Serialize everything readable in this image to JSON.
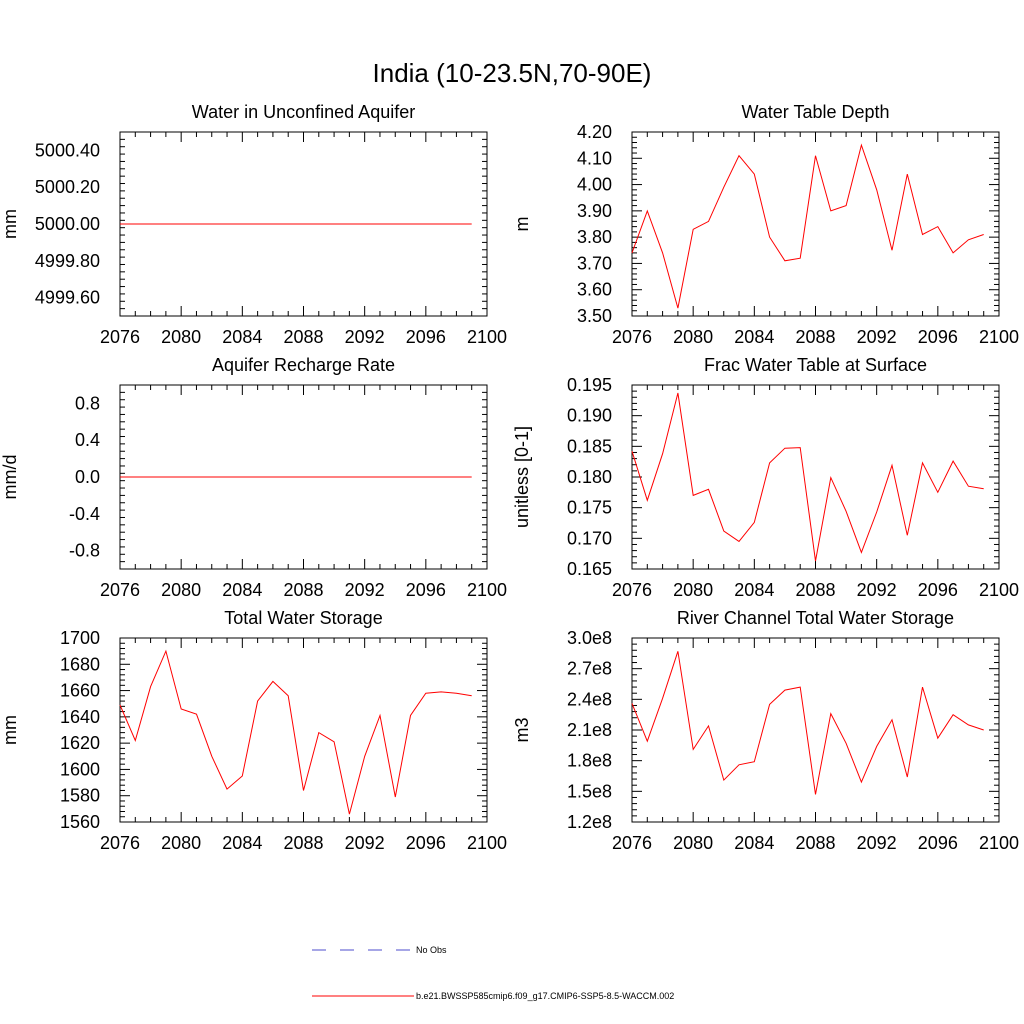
{
  "figure_title": "India (10-23.5N,70-90E)",
  "line_color": "#ff0000",
  "obs_color": "#4d4dcc",
  "legend": {
    "obs_label": "No Obs",
    "model_label": "b.e21.BWSSP585cmip6.f09_g17.CMIP6-SSP5-8.5-WACCM.002"
  },
  "chart_data": [
    {
      "type": "line",
      "title": "Water in Unconfined Aquifer",
      "ylabel": "mm",
      "xlim": [
        2076,
        2100
      ],
      "xticks": [
        2076,
        2080,
        2084,
        2088,
        2092,
        2096,
        2100
      ],
      "ylim": [
        4999.5,
        5000.5
      ],
      "yticks": [
        4999.6,
        4999.8,
        5000.0,
        5000.2,
        5000.4
      ],
      "ytick_labels": [
        "4999.60",
        "4999.80",
        "5000.00",
        "5000.20",
        "5000.40"
      ],
      "x": [
        2076,
        2077,
        2078,
        2079,
        2080,
        2081,
        2082,
        2083,
        2084,
        2085,
        2086,
        2087,
        2088,
        2089,
        2090,
        2091,
        2092,
        2093,
        2094,
        2095,
        2096,
        2097,
        2098,
        2099
      ],
      "y": [
        5000,
        5000,
        5000,
        5000,
        5000,
        5000,
        5000,
        5000,
        5000,
        5000,
        5000,
        5000,
        5000,
        5000,
        5000,
        5000,
        5000,
        5000,
        5000,
        5000,
        5000,
        5000,
        5000,
        5000
      ]
    },
    {
      "type": "line",
      "title": "Water Table Depth",
      "ylabel": "m",
      "xlim": [
        2076,
        2100
      ],
      "xticks": [
        2076,
        2080,
        2084,
        2088,
        2092,
        2096,
        2100
      ],
      "ylim": [
        3.5,
        4.2
      ],
      "yticks": [
        3.5,
        3.6,
        3.7,
        3.8,
        3.9,
        4.0,
        4.1,
        4.2
      ],
      "ytick_labels": [
        "3.50",
        "3.60",
        "3.70",
        "3.80",
        "3.90",
        "4.00",
        "4.10",
        "4.20"
      ],
      "x": [
        2076,
        2077,
        2078,
        2079,
        2080,
        2081,
        2082,
        2083,
        2084,
        2085,
        2086,
        2087,
        2088,
        2089,
        2090,
        2091,
        2092,
        2093,
        2094,
        2095,
        2096,
        2097,
        2098,
        2099
      ],
      "y": [
        3.74,
        3.9,
        3.74,
        3.53,
        3.83,
        3.86,
        3.99,
        4.11,
        4.04,
        3.8,
        3.71,
        3.72,
        4.11,
        3.9,
        3.92,
        4.15,
        3.98,
        3.75,
        4.04,
        3.81,
        3.84,
        3.74,
        3.79,
        3.81
      ]
    },
    {
      "type": "line",
      "title": "Aquifer Recharge Rate",
      "ylabel": "mm/d",
      "xlim": [
        2076,
        2100
      ],
      "xticks": [
        2076,
        2080,
        2084,
        2088,
        2092,
        2096,
        2100
      ],
      "ylim": [
        -1.0,
        1.0
      ],
      "yticks": [
        -0.8,
        -0.4,
        0.0,
        0.4,
        0.8
      ],
      "ytick_labels": [
        "-0.8",
        "-0.4",
        "0.0",
        "0.4",
        "0.8"
      ],
      "x": [
        2076,
        2077,
        2078,
        2079,
        2080,
        2081,
        2082,
        2083,
        2084,
        2085,
        2086,
        2087,
        2088,
        2089,
        2090,
        2091,
        2092,
        2093,
        2094,
        2095,
        2096,
        2097,
        2098,
        2099
      ],
      "y": [
        0,
        0,
        0,
        0,
        0,
        0,
        0,
        0,
        0,
        0,
        0,
        0,
        0,
        0,
        0,
        0,
        0,
        0,
        0,
        0,
        0,
        0,
        0,
        0
      ]
    },
    {
      "type": "line",
      "title": "Frac Water Table at Surface",
      "ylabel": "unitless [0-1]",
      "xlim": [
        2076,
        2100
      ],
      "xticks": [
        2076,
        2080,
        2084,
        2088,
        2092,
        2096,
        2100
      ],
      "ylim": [
        0.165,
        0.195
      ],
      "yticks": [
        0.165,
        0.17,
        0.175,
        0.18,
        0.185,
        0.19,
        0.195
      ],
      "ytick_labels": [
        "0.165",
        "0.170",
        "0.175",
        "0.180",
        "0.185",
        "0.190",
        "0.195"
      ],
      "x": [
        2076,
        2077,
        2078,
        2079,
        2080,
        2081,
        2082,
        2083,
        2084,
        2085,
        2086,
        2087,
        2088,
        2089,
        2090,
        2091,
        2092,
        2093,
        2094,
        2095,
        2096,
        2097,
        2098,
        2099
      ],
      "y": [
        0.1842,
        0.1762,
        0.1838,
        0.1937,
        0.177,
        0.178,
        0.1712,
        0.1695,
        0.1726,
        0.1823,
        0.1847,
        0.1848,
        0.1663,
        0.1799,
        0.1744,
        0.1677,
        0.1743,
        0.1819,
        0.1705,
        0.1823,
        0.1775,
        0.1826,
        0.1785,
        0.1781
      ]
    },
    {
      "type": "line",
      "title": "Total Water Storage",
      "ylabel": "mm",
      "xlim": [
        2076,
        2100
      ],
      "xticks": [
        2076,
        2080,
        2084,
        2088,
        2092,
        2096,
        2100
      ],
      "ylim": [
        1560,
        1700
      ],
      "yticks": [
        1560,
        1580,
        1600,
        1620,
        1640,
        1660,
        1680,
        1700
      ],
      "ytick_labels": [
        "1560",
        "1580",
        "1600",
        "1620",
        "1640",
        "1660",
        "1680",
        "1700"
      ],
      "x": [
        2076,
        2077,
        2078,
        2079,
        2080,
        2081,
        2082,
        2083,
        2084,
        2085,
        2086,
        2087,
        2088,
        2089,
        2090,
        2091,
        2092,
        2093,
        2094,
        2095,
        2096,
        2097,
        2098,
        2099
      ],
      "y": [
        1649,
        1622,
        1663,
        1690,
        1646,
        1642,
        1610,
        1585,
        1595,
        1652,
        1667,
        1656,
        1584,
        1628,
        1621,
        1566,
        1610,
        1641,
        1579,
        1641,
        1658,
        1659,
        1658,
        1656
      ]
    },
    {
      "type": "line",
      "title": "River Channel Total Water Storage",
      "ylabel": "m3",
      "xlim": [
        2076,
        2100
      ],
      "xticks": [
        2076,
        2080,
        2084,
        2088,
        2092,
        2096,
        2100
      ],
      "ylim": [
        120000000,
        300000000
      ],
      "yticks": [
        120000000,
        150000000,
        180000000,
        210000000,
        240000000,
        270000000,
        300000000
      ],
      "ytick_labels": [
        "1.2e8",
        "1.5e8",
        "1.8e8",
        "2.1e8",
        "2.4e8",
        "2.7e8",
        "3.0e8"
      ],
      "x": [
        2076,
        2077,
        2078,
        2079,
        2080,
        2081,
        2082,
        2083,
        2084,
        2085,
        2086,
        2087,
        2088,
        2089,
        2090,
        2091,
        2092,
        2093,
        2094,
        2095,
        2096,
        2097,
        2098,
        2099
      ],
      "y": [
        236000000,
        199000000,
        241000000,
        287000000,
        191000000,
        214000000,
        161000000,
        176000000,
        179000000,
        235000000,
        249000000,
        252000000,
        147000000,
        226000000,
        197000000,
        159000000,
        194000000,
        220000000,
        164000000,
        252000000,
        202000000,
        225000000,
        215000000,
        210000000
      ]
    }
  ]
}
